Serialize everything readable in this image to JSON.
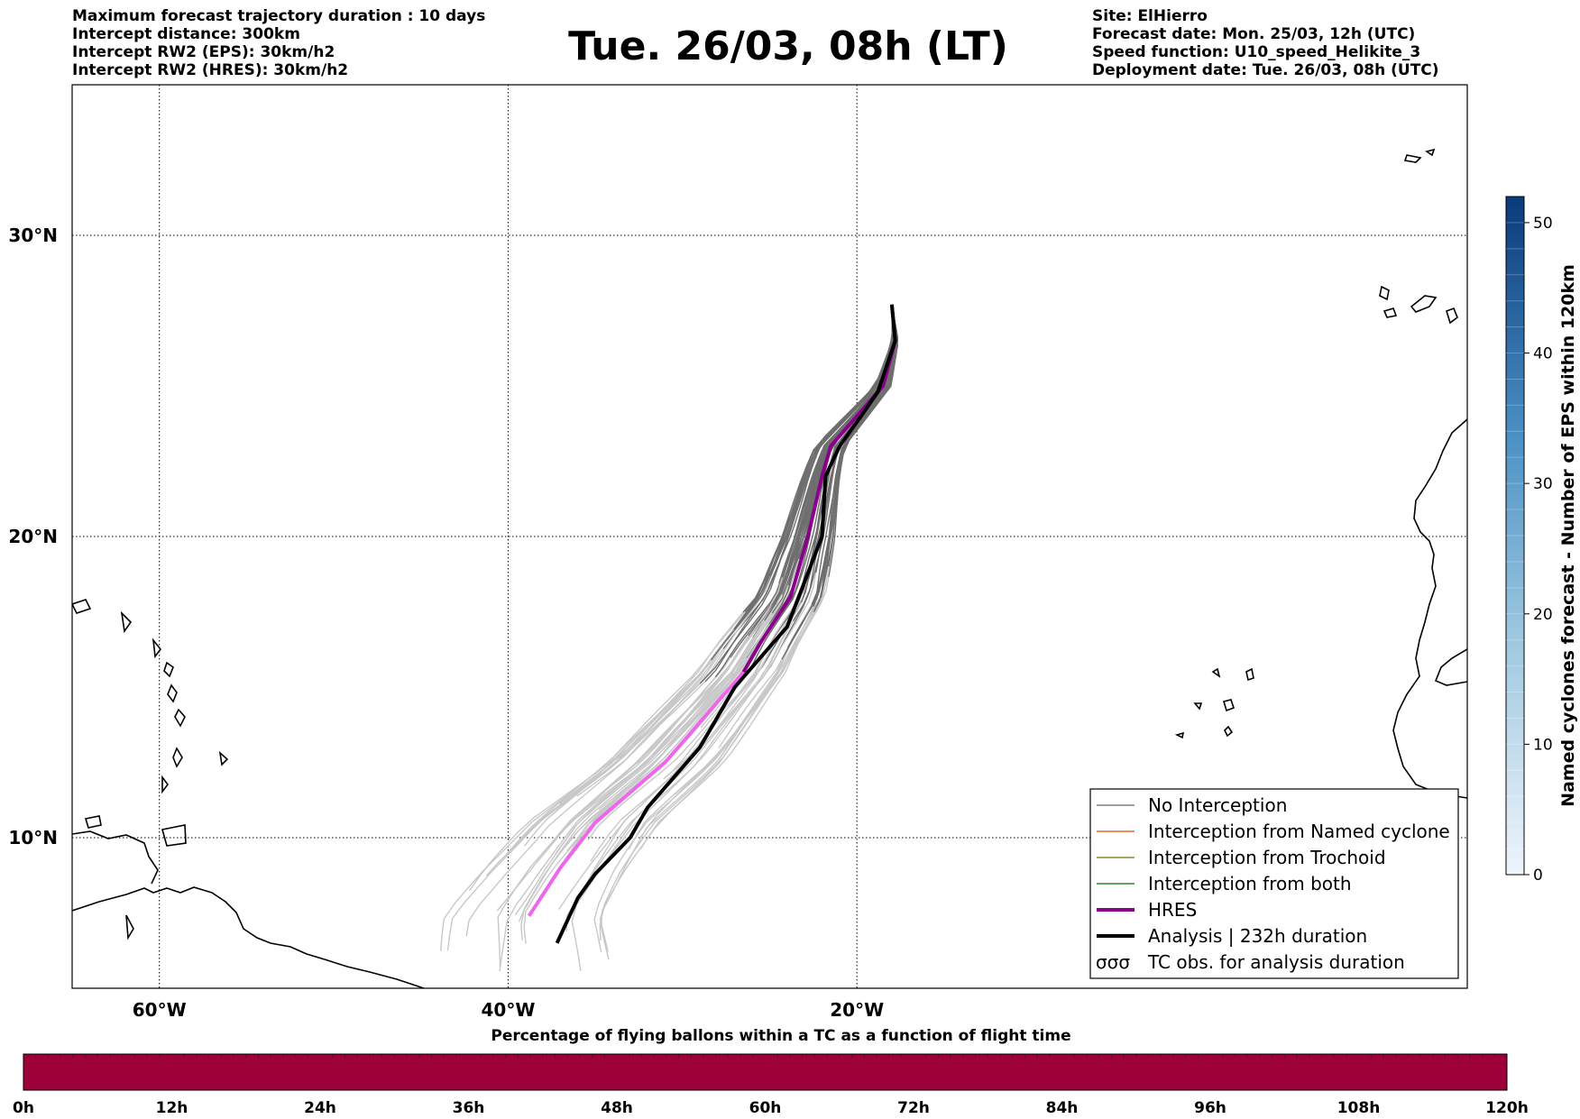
{
  "header": {
    "left_lines": [
      "Maximum forecast trajectory duration : 10 days",
      "Intercept distance: 300km",
      "Intercept RW2 (EPS):  30km/h2",
      "Intercept RW2 (HRES): 30km/h2"
    ],
    "right_lines": [
      "Site: ElHierro",
      "Forecast date: Mon. 25/03, 12h (UTC)",
      "Speed function: U10_speed_Helikite_3",
      "Deployment date: Tue. 26/03, 08h (UTC)"
    ],
    "title": "Tue. 26/03, 08h (LT)"
  },
  "map": {
    "lon_range": [
      -65,
      15
    ],
    "lat_range": [
      5,
      35
    ],
    "lon_ticks": [
      {
        "value": -60,
        "label": "60°W"
      },
      {
        "value": -40,
        "label": "40°W"
      },
      {
        "value": -20,
        "label": "20°W"
      }
    ],
    "lat_ticks": [
      {
        "value": 10,
        "label": "10°N"
      },
      {
        "value": 20,
        "label": "20°N"
      },
      {
        "value": 30,
        "label": "30°N"
      }
    ],
    "grid": "dotted"
  },
  "legend": {
    "placement": "lower-right",
    "entries": [
      {
        "label": "No Interception",
        "color": "#808080",
        "style": "thin"
      },
      {
        "label": "Interception from Named cyclone",
        "color": "#e8632a",
        "style": "thin"
      },
      {
        "label": "Interception from Trochoid",
        "color": "#8a8a2a",
        "style": "thin"
      },
      {
        "label": "Interception from both",
        "color": "#2a8a2a",
        "style": "thin"
      },
      {
        "label": "HRES",
        "color": "#8b008b",
        "style": "thick"
      },
      {
        "label": "Analysis | 232h duration",
        "color": "#000000",
        "style": "thick"
      },
      {
        "label": "TC obs. for analysis duration",
        "color": "#000000",
        "style": "symbol"
      }
    ]
  },
  "colorbar_right": {
    "label": "Named cyclones forecast - Number of EPS within 120km",
    "ticks": [
      0,
      10,
      20,
      30,
      40,
      50
    ],
    "range": [
      0,
      52
    ],
    "color_low": "#e8f0fa",
    "color_high": "#0a3a7a"
  },
  "colorbar_bottom": {
    "title": "Percentage of flying ballons within a TC as a function of flight time",
    "ticks": [
      "0h",
      "12h",
      "24h",
      "36h",
      "48h",
      "60h",
      "72h",
      "84h",
      "96h",
      "108h",
      "120h"
    ],
    "color": "#9e003a"
  },
  "chart_data": {
    "type": "trajectory-map",
    "origin": {
      "name": "ElHierro",
      "lon": -18.0,
      "lat": 27.7
    },
    "hres": [
      [
        -18.0,
        27.7
      ],
      [
        -17.8,
        26.5
      ],
      [
        -18.5,
        25.0
      ],
      [
        -20.0,
        24.0
      ],
      [
        -21.5,
        23.0
      ],
      [
        -22.0,
        22.0
      ],
      [
        -22.8,
        20.0
      ],
      [
        -23.8,
        18.0
      ],
      [
        -25.5,
        16.5
      ],
      [
        -26.5,
        15.5
      ],
      [
        -28.0,
        14.5
      ],
      [
        -29.5,
        13.5
      ],
      [
        -31.0,
        12.5
      ],
      [
        -33.0,
        11.5
      ],
      [
        -35.0,
        10.5
      ],
      [
        -37.0,
        9.0
      ],
      [
        -38.8,
        7.4
      ]
    ],
    "hres_dark_until_lat": 15.5,
    "analysis": [
      [
        -18.0,
        27.7
      ],
      [
        -17.8,
        26.5
      ],
      [
        -18.8,
        24.8
      ],
      [
        -20.0,
        23.8
      ],
      [
        -21.0,
        23.0
      ],
      [
        -21.8,
        22.0
      ],
      [
        -22.0,
        20.0
      ],
      [
        -23.0,
        18.5
      ],
      [
        -24.0,
        17.0
      ],
      [
        -25.5,
        16.0
      ],
      [
        -27.0,
        15.0
      ],
      [
        -28.0,
        14.0
      ],
      [
        -29.0,
        13.0
      ],
      [
        -30.5,
        12.0
      ],
      [
        -32.0,
        11.0
      ],
      [
        -33.0,
        10.0
      ],
      [
        -35.0,
        8.8
      ],
      [
        -36.0,
        8.0
      ],
      [
        -37.2,
        6.5
      ]
    ]
  }
}
